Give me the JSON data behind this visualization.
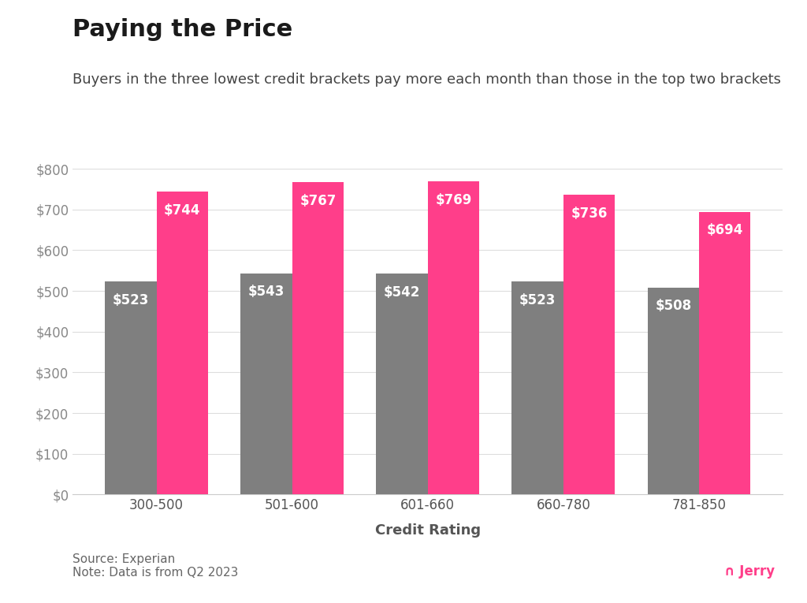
{
  "title": "Paying the Price",
  "subtitle": "Buyers in the three lowest credit brackets pay more each month than those in the top two brackets",
  "xlabel": "Credit Rating",
  "categories": [
    "300-500",
    "501-600",
    "601-660",
    "660-780",
    "781-850"
  ],
  "values_gray": [
    523,
    543,
    542,
    523,
    508
  ],
  "values_pink": [
    744,
    767,
    769,
    736,
    694
  ],
  "color_gray": "#7f7f7f",
  "color_pink": "#FF3E8A",
  "background_color": "#ffffff",
  "ylim": [
    0,
    800
  ],
  "ytick_values": [
    0,
    100,
    200,
    300,
    400,
    500,
    600,
    700,
    800
  ],
  "bar_width": 0.38,
  "label_color": "#ffffff",
  "source_text": "Source: Experian\nNote: Data is from Q2 2023",
  "jerry_text": "∩ Jerry",
  "title_fontsize": 22,
  "subtitle_fontsize": 13,
  "axis_label_fontsize": 13,
  "bar_label_fontsize": 12,
  "source_fontsize": 11,
  "tick_fontsize": 12,
  "tick_color": "#888888",
  "xtick_color": "#555555"
}
